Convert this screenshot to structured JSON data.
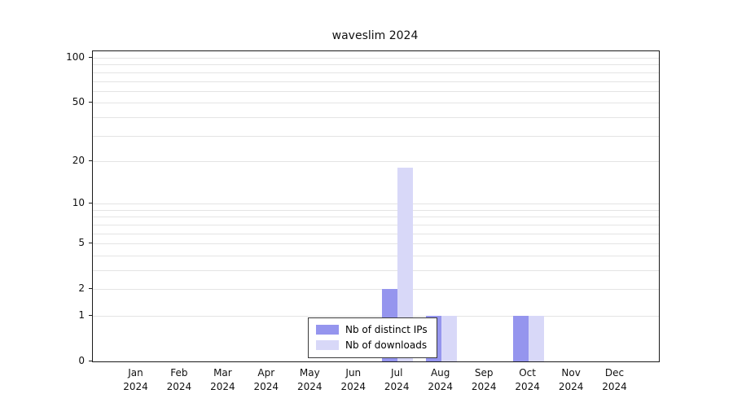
{
  "title": "waveslim 2024",
  "legend": {
    "items": [
      {
        "label": "Nb of distinct IPs",
        "color": "#9595ee"
      },
      {
        "label": "Nb of downloads",
        "color": "#d8d8f8"
      }
    ]
  },
  "chart_data": {
    "type": "bar",
    "title": "waveslim 2024",
    "categories": [
      "Jan 2024",
      "Feb 2024",
      "Mar 2024",
      "Apr 2024",
      "May 2024",
      "Jun 2024",
      "Jul 2024",
      "Aug 2024",
      "Sep 2024",
      "Oct 2024",
      "Nov 2024",
      "Dec 2024"
    ],
    "series": [
      {
        "name": "Nb of distinct IPs",
        "color": "#9595ee",
        "values": [
          0,
          0,
          0,
          0,
          0,
          0,
          2,
          1,
          0,
          1,
          0,
          0
        ]
      },
      {
        "name": "Nb of downloads",
        "color": "#d8d8f8",
        "values": [
          0,
          0,
          0,
          0,
          0,
          0,
          18,
          1,
          0,
          1,
          0,
          0
        ]
      }
    ],
    "xlabel": "",
    "ylabel": "",
    "yscale": "log1p",
    "ylim": [
      0,
      100
    ],
    "yticks": [
      0,
      1,
      2,
      5,
      10,
      20,
      50,
      100
    ],
    "gridlines": [
      1,
      2,
      3,
      4,
      5,
      6,
      7,
      8,
      9,
      10,
      20,
      30,
      40,
      50,
      60,
      70,
      80,
      90,
      100
    ],
    "grid": "horizontal",
    "legend_position": "bottom-center-inside"
  }
}
